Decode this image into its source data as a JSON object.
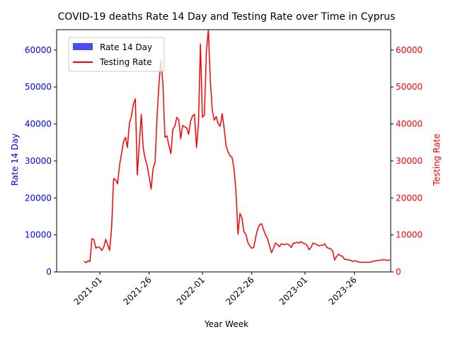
{
  "chart_data": {
    "type": "line",
    "title": "COVID-19 deaths Rate 14 Day and Testing Rate over Time in Cyprus",
    "xlabel": "Year Week",
    "ylabel_left": "Rate 14 Day",
    "ylabel_right": "Testing Rate",
    "ylim_left": [
      0,
      65500
    ],
    "ylim_right": [
      0,
      65500
    ],
    "xticks": [
      "2021-01",
      "2021-26",
      "2022-01",
      "2022-26",
      "2023-01",
      "2023-26"
    ],
    "yticks_left": [
      "0",
      "10000",
      "20000",
      "30000",
      "40000",
      "50000",
      "60000"
    ],
    "yticks_right": [
      "0",
      "10000",
      "20000",
      "30000",
      "40000",
      "50000",
      "60000"
    ],
    "legend": {
      "position": "upper-left",
      "entries": [
        "Rate 14 Day",
        "Testing Rate"
      ]
    },
    "colors": {
      "bar": "#4b4bf7",
      "line": "#ff0000",
      "left_axis": "#0000ff",
      "right_axis": "#ff0000"
    },
    "series": [
      {
        "name": "Rate 14 Day",
        "kind": "bar",
        "axis": "left",
        "values": []
      },
      {
        "name": "Testing Rate",
        "kind": "line",
        "axis": "right",
        "x_start_week": "2020-45",
        "values": [
          2900,
          2500,
          3000,
          2800,
          9000,
          8800,
          6400,
          6800,
          6600,
          5800,
          6700,
          8800,
          7200,
          5800,
          12000,
          25200,
          25000,
          23800,
          28800,
          32000,
          35200,
          36400,
          33600,
          40200,
          42000,
          45300,
          46800,
          26200,
          34600,
          42600,
          33600,
          30600,
          28800,
          25800,
          22400,
          28000,
          29600,
          42000,
          51200,
          57200,
          50800,
          36400,
          36800,
          34200,
          32000,
          38600,
          39400,
          41800,
          41200,
          36000,
          39600,
          39200,
          39000,
          37200,
          40800,
          42200,
          42600,
          33600,
          40000,
          61600,
          41800,
          42400,
          59800,
          65400,
          51600,
          43800,
          41000,
          42000,
          40000,
          39400,
          42800,
          38800,
          34000,
          32400,
          31400,
          31000,
          28000,
          21600,
          10200,
          15800,
          14600,
          10800,
          10200,
          8000,
          7000,
          6400,
          6600,
          9400,
          11600,
          12800,
          13000,
          11400,
          10000,
          9000,
          7000,
          5200,
          6400,
          7800,
          7400,
          6800,
          7600,
          7400,
          7400,
          7600,
          7200,
          6600,
          7800,
          7800,
          8000,
          7800,
          8200,
          7800,
          7600,
          7200,
          6000,
          6600,
          7800,
          7600,
          7400,
          7000,
          7200,
          7200,
          7600,
          6600,
          6400,
          6200,
          5600,
          3200,
          4200,
          4800,
          4400,
          4200,
          3400,
          3400,
          3200,
          3200,
          2800,
          3000,
          2900,
          2700,
          2600,
          2600,
          2600,
          2600,
          2600,
          2600,
          2800,
          2900,
          3000,
          3100,
          3200,
          3200,
          3300,
          3200,
          3100,
          3300
        ]
      }
    ]
  }
}
